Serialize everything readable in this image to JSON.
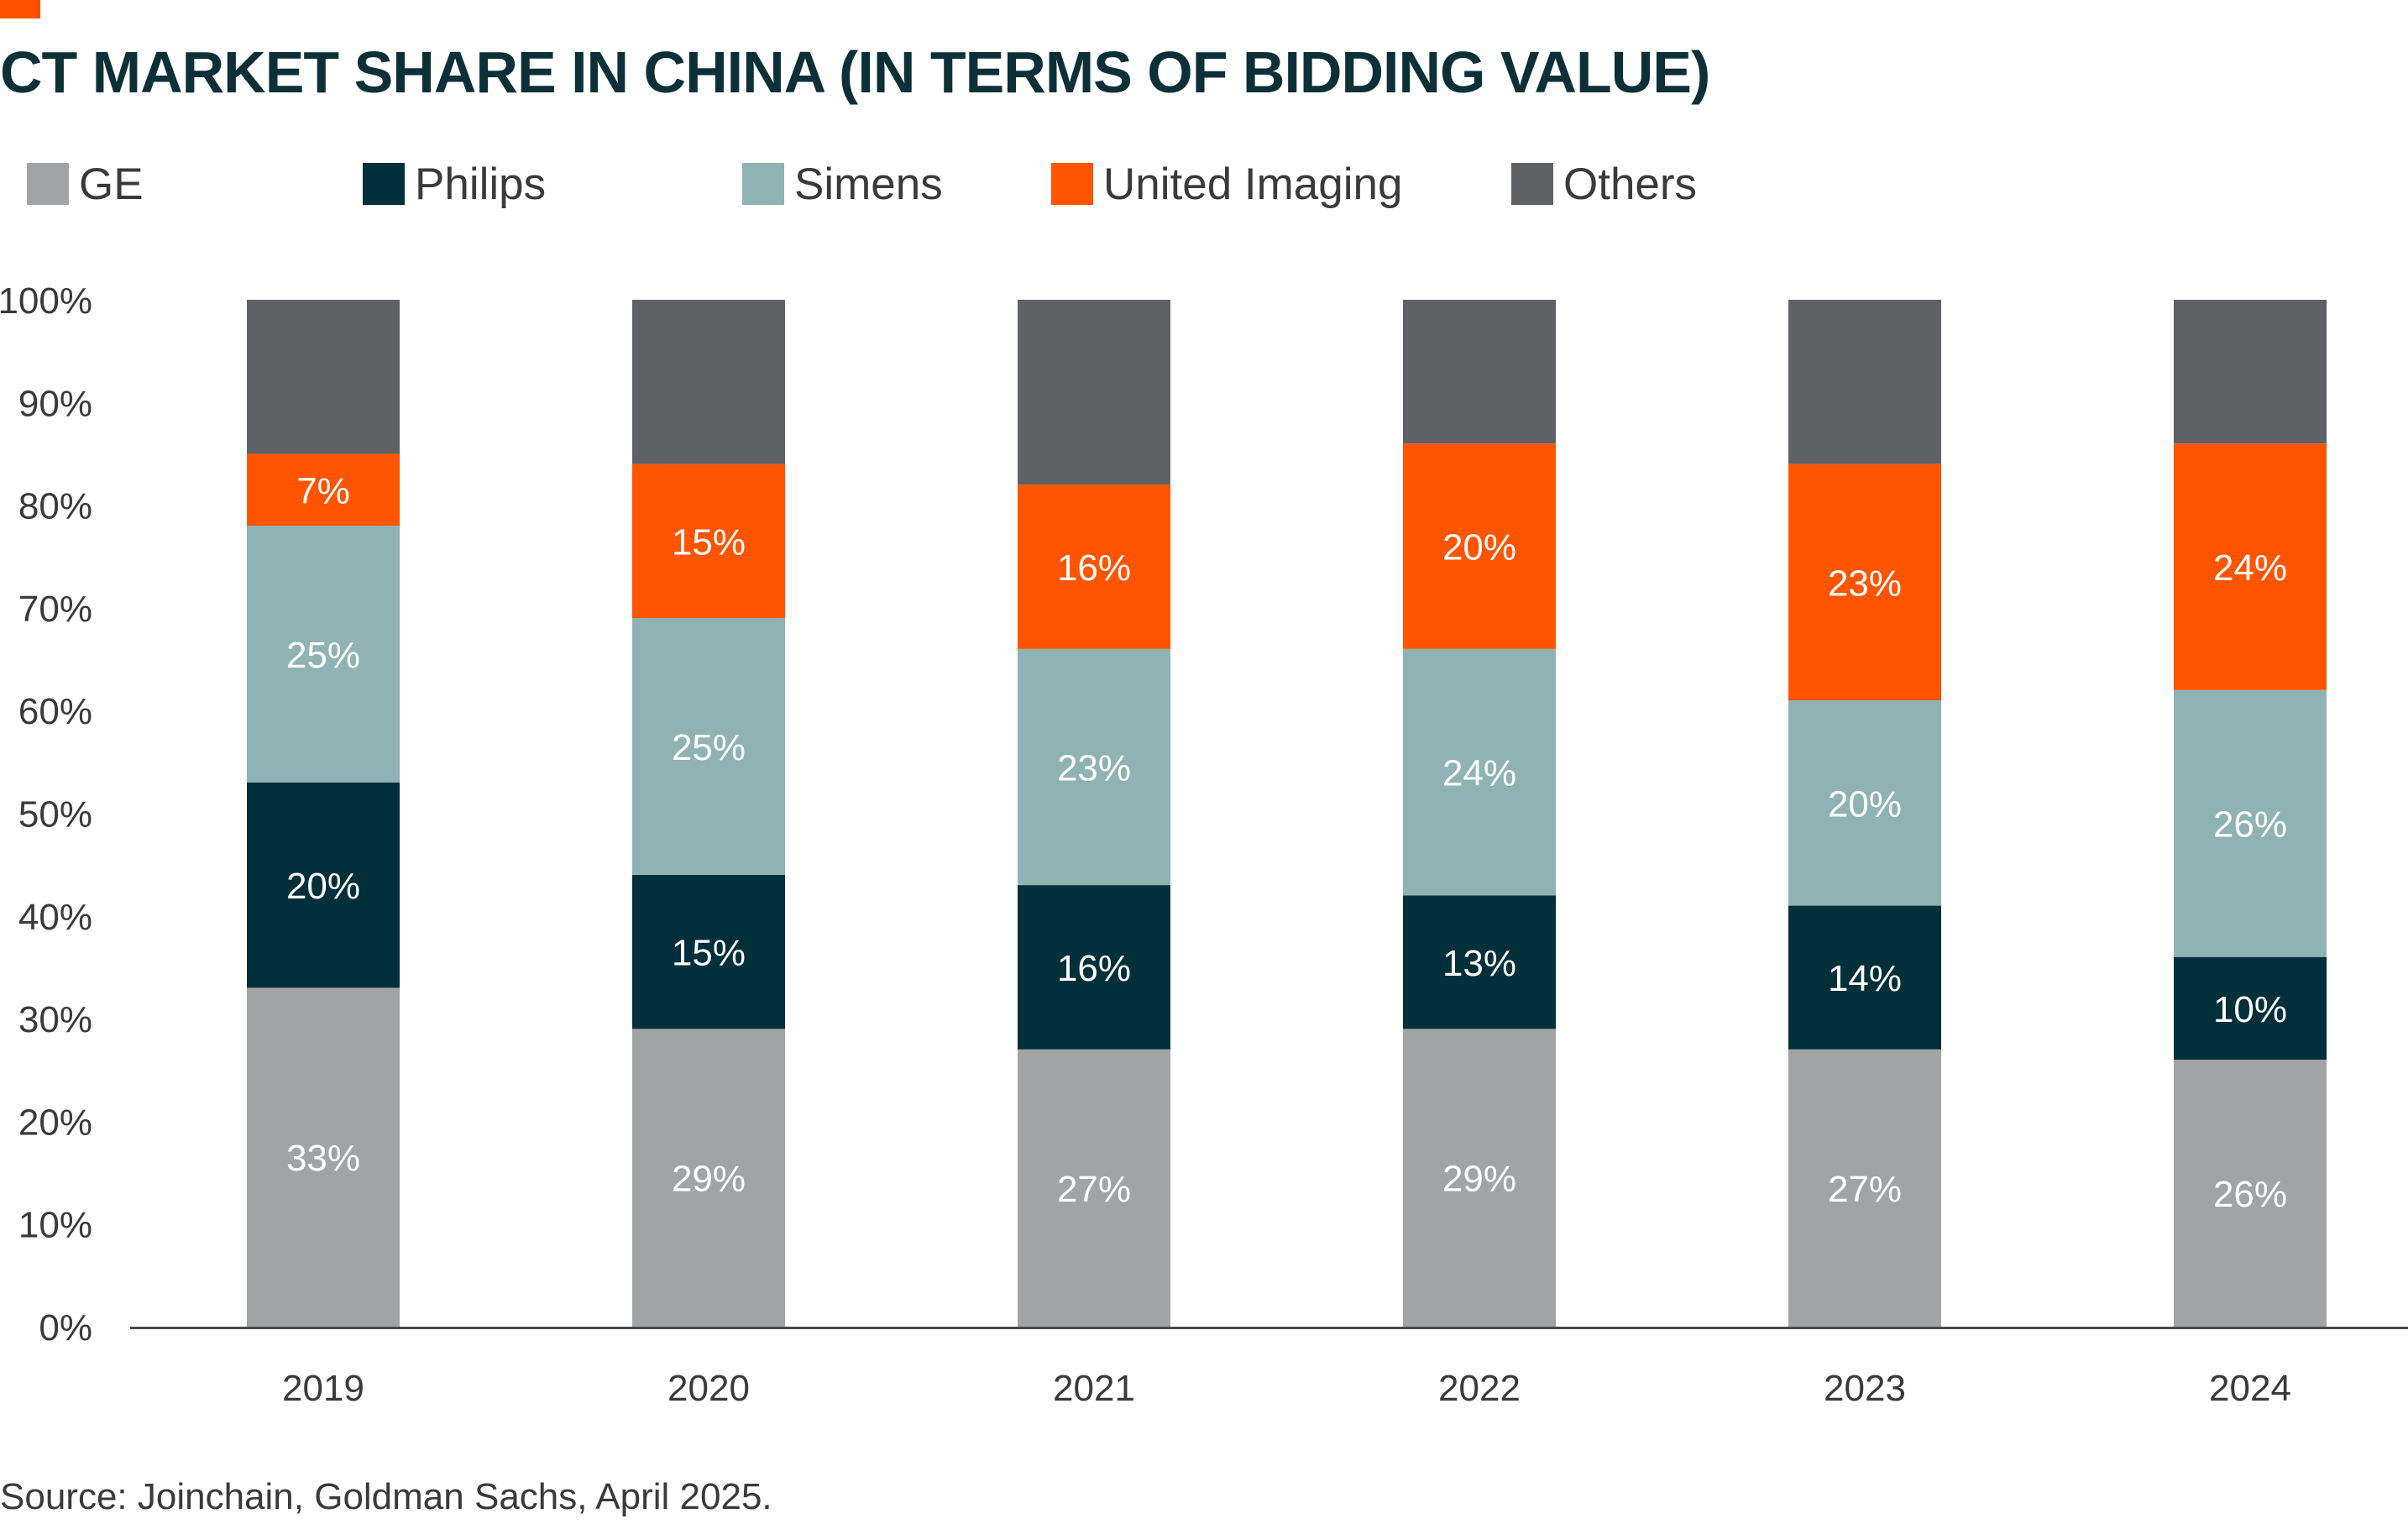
{
  "header": {
    "title": "CT MARKET SHARE IN CHINA (IN TERMS OF BIDDING VALUE)",
    "accent_color": "#ff5000"
  },
  "legend": [
    {
      "label": "GE",
      "color": "#a2a3a5"
    },
    {
      "label": "Philips",
      "color": "#01303a"
    },
    {
      "label": "Simens",
      "color": "#8eb3b2"
    },
    {
      "label": "United Imaging",
      "color": "#ff5400"
    },
    {
      "label": "Others",
      "color": "#606165"
    }
  ],
  "chart_data": {
    "type": "bar",
    "stacked": true,
    "title": "CT MARKET SHARE IN CHINA (IN TERMS OF BIDDING VALUE)",
    "categories": [
      "2019",
      "2020",
      "2021",
      "2022",
      "2023",
      "2024"
    ],
    "series": [
      {
        "name": "GE",
        "color": "#a2a3a5",
        "values": [
          33,
          29,
          27,
          29,
          27,
          26
        ],
        "labels": [
          "33%",
          "29%",
          "27%",
          "29%",
          "27%",
          "26%"
        ]
      },
      {
        "name": "Philips",
        "color": "#01303a",
        "values": [
          20,
          15,
          16,
          13,
          14,
          10
        ],
        "labels": [
          "20%",
          "15%",
          "16%",
          "13%",
          "14%",
          "10%"
        ]
      },
      {
        "name": "Simens",
        "color": "#8eb3b2",
        "values": [
          25,
          25,
          23,
          24,
          20,
          26
        ],
        "labels": [
          "25%",
          "25%",
          "23%",
          "24%",
          "20%",
          "26%"
        ]
      },
      {
        "name": "United Imaging",
        "color": "#ff5400",
        "values": [
          7,
          15,
          16,
          20,
          23,
          24
        ],
        "labels": [
          "7%",
          "15%",
          "16%",
          "20%",
          "23%",
          "24%"
        ]
      },
      {
        "name": "Others",
        "color": "#606165",
        "values": [
          15,
          16,
          18,
          14,
          16,
          14
        ],
        "labels": [
          "",
          "",
          "",
          "",
          "",
          ""
        ]
      }
    ],
    "ylim": [
      0,
      100
    ],
    "yticks": [
      "0%",
      "10%",
      "20%",
      "30%",
      "40%",
      "50%",
      "60%",
      "70%",
      "80%",
      "90%",
      "100%"
    ],
    "grid": false,
    "legend_position": "top"
  },
  "footer": {
    "source": "Source: Joinchain, Goldman Sachs, April 2025."
  }
}
